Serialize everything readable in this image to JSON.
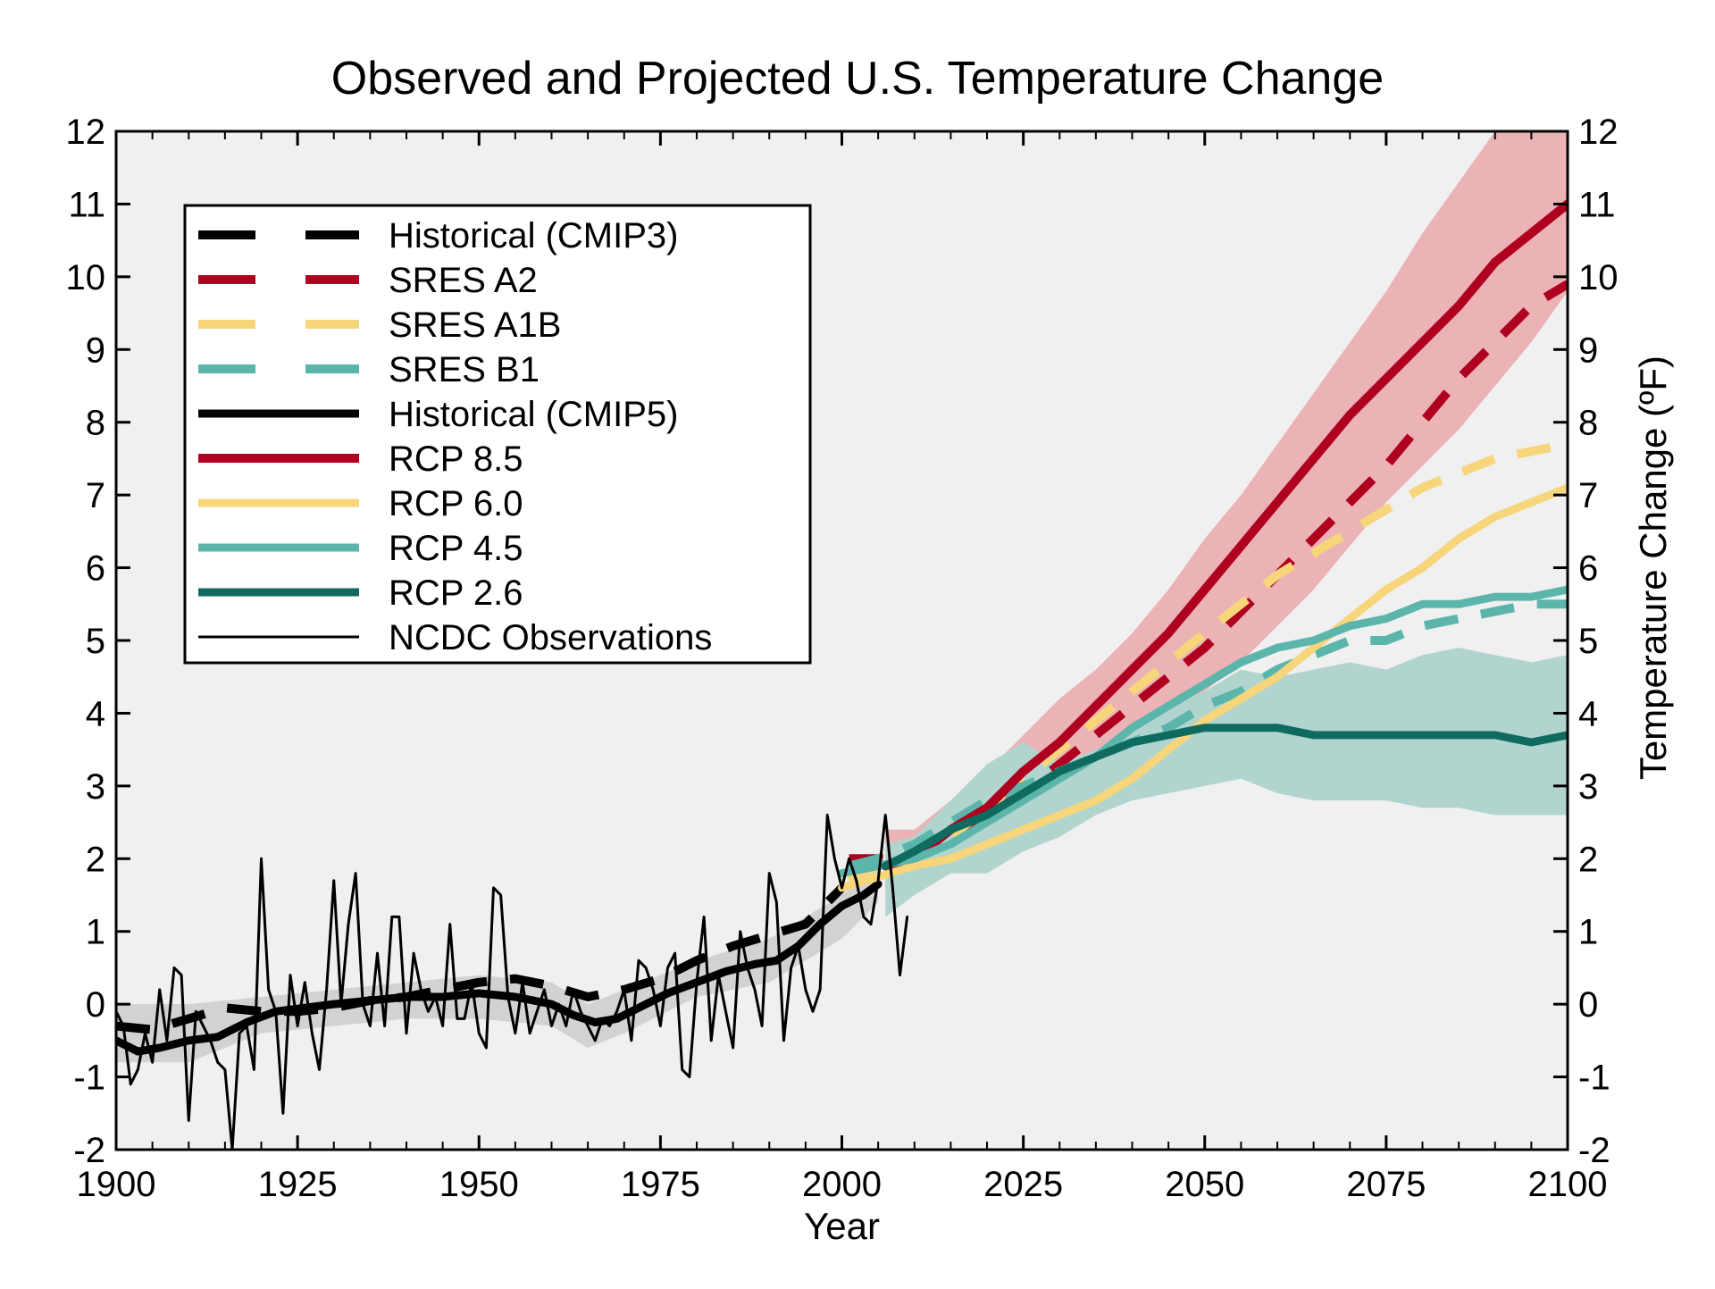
{
  "chart_data": {
    "type": "line",
    "title": "Observed and Projected U.S. Temperature Change",
    "xlabel": "Year",
    "ylabel_right": "Temperature Change (ºF)",
    "xlim": [
      1900,
      2100
    ],
    "ylim": [
      -2,
      12
    ],
    "xticks": [
      1900,
      1925,
      1950,
      1975,
      2000,
      2025,
      2050,
      2075,
      2100
    ],
    "yticks": [
      -2,
      -1,
      0,
      1,
      2,
      3,
      4,
      5,
      6,
      7,
      8,
      9,
      10,
      11,
      12
    ],
    "grid": false,
    "legend_position": "top-left",
    "colors": {
      "black": "#000000",
      "red": "#b00020",
      "yellow": "#f7d57a",
      "teal": "#5bb5ab",
      "darkteal": "#0f6b60",
      "red_band": "#ebb3b6",
      "teal_band": "#b2d4cf",
      "hist_band": "#d2d2d2",
      "plot_bg": "#f0f0f0"
    },
    "bands": [
      {
        "color": "red_band",
        "x": [
          2006,
          2010,
          2015,
          2020,
          2025,
          2030,
          2035,
          2040,
          2045,
          2050,
          2055,
          2060,
          2065,
          2070,
          2075,
          2080,
          2085,
          2090,
          2095,
          2100
        ],
        "upper": [
          2.4,
          2.4,
          2.8,
          3.2,
          3.7,
          4.2,
          4.6,
          5.1,
          5.7,
          6.4,
          7.0,
          7.7,
          8.4,
          9.1,
          9.8,
          10.6,
          11.3,
          12.0,
          12.0,
          12.0
        ],
        "lower": [
          1.5,
          1.6,
          1.8,
          2.0,
          2.3,
          2.7,
          3.0,
          3.4,
          3.8,
          4.3,
          4.7,
          5.2,
          5.7,
          6.3,
          6.9,
          7.4,
          7.9,
          8.5,
          9.1,
          9.8
        ]
      },
      {
        "color": "teal_band",
        "x": [
          2006,
          2010,
          2015,
          2020,
          2025,
          2030,
          2035,
          2040,
          2045,
          2050,
          2055,
          2060,
          2065,
          2070,
          2075,
          2080,
          2085,
          2090,
          2095,
          2100
        ],
        "upper": [
          2.2,
          2.3,
          2.8,
          3.3,
          3.6,
          3.3,
          3.5,
          3.8,
          4.1,
          4.3,
          4.6,
          4.5,
          4.6,
          4.7,
          4.6,
          4.8,
          4.9,
          4.8,
          4.7,
          4.8
        ],
        "lower": [
          1.2,
          1.5,
          1.8,
          1.8,
          2.1,
          2.3,
          2.6,
          2.8,
          2.9,
          3.0,
          3.1,
          2.9,
          2.8,
          2.8,
          2.8,
          2.7,
          2.7,
          2.6,
          2.6,
          2.6
        ]
      },
      {
        "color": "hist_band",
        "x": [
          1900,
          1910,
          1920,
          1930,
          1940,
          1950,
          1960,
          1965,
          1970,
          1980,
          1990,
          2000,
          2005
        ],
        "upper": [
          0.0,
          0.0,
          0.1,
          0.2,
          0.3,
          0.4,
          0.3,
          0.0,
          0.2,
          0.6,
          0.9,
          1.5,
          1.9
        ],
        "lower": [
          -0.8,
          -0.8,
          -0.4,
          -0.3,
          -0.2,
          -0.2,
          -0.3,
          -0.6,
          -0.4,
          0.1,
          0.3,
          0.9,
          1.4
        ]
      }
    ],
    "series": [
      {
        "name": "Historical (CMIP3)",
        "color": "black",
        "style": "dashed",
        "width": 10,
        "x": [
          1900,
          1905,
          1910,
          1915,
          1920,
          1925,
          1930,
          1935,
          1940,
          1945,
          1950,
          1955,
          1960,
          1965,
          1970,
          1975,
          1980,
          1985,
          1990,
          1995,
          2000
        ],
        "y": [
          -0.3,
          -0.35,
          -0.2,
          -0.05,
          -0.1,
          -0.1,
          -0.05,
          0.05,
          0.1,
          0.2,
          0.3,
          0.35,
          0.25,
          0.1,
          0.2,
          0.35,
          0.6,
          0.8,
          0.95,
          1.1,
          1.6
        ]
      },
      {
        "name": "SRES A2",
        "color": "red",
        "style": "dashed",
        "width": 10,
        "x": [
          2001,
          2005,
          2010,
          2015,
          2020,
          2025,
          2030,
          2035,
          2040,
          2045,
          2050,
          2055,
          2060,
          2065,
          2070,
          2075,
          2080,
          2085,
          2090,
          2095,
          2100
        ],
        "y": [
          2.0,
          2.0,
          2.0,
          2.3,
          2.6,
          2.9,
          3.3,
          3.7,
          4.1,
          4.5,
          4.9,
          5.4,
          5.9,
          6.4,
          6.9,
          7.4,
          8.0,
          8.6,
          9.1,
          9.6,
          9.9
        ]
      },
      {
        "name": "SRES A1B",
        "color": "yellow",
        "style": "dashed",
        "width": 10,
        "x": [
          2001,
          2005,
          2010,
          2015,
          2020,
          2025,
          2030,
          2035,
          2040,
          2045,
          2050,
          2055,
          2060,
          2065,
          2070,
          2075,
          2080,
          2085,
          2090,
          2095,
          2100
        ],
        "y": [
          1.7,
          1.9,
          2.0,
          2.3,
          2.7,
          3.1,
          3.5,
          3.9,
          4.3,
          4.7,
          5.1,
          5.5,
          5.9,
          6.2,
          6.5,
          6.8,
          7.1,
          7.3,
          7.5,
          7.6,
          7.7
        ]
      },
      {
        "name": "SRES B1",
        "color": "teal",
        "style": "dashed",
        "width": 10,
        "x": [
          2001,
          2005,
          2010,
          2015,
          2020,
          2025,
          2030,
          2035,
          2040,
          2045,
          2050,
          2055,
          2060,
          2065,
          2070,
          2075,
          2080,
          2085,
          2090,
          2095,
          2100
        ],
        "y": [
          1.9,
          2.0,
          2.2,
          2.5,
          2.8,
          3.0,
          3.2,
          3.4,
          3.6,
          3.8,
          4.1,
          4.3,
          4.6,
          4.8,
          5.0,
          5.0,
          5.2,
          5.3,
          5.4,
          5.5,
          5.5
        ]
      },
      {
        "name": "Historical (CMIP5)",
        "color": "black",
        "style": "solid",
        "width": 9,
        "x": [
          1900,
          1903,
          1906,
          1910,
          1914,
          1918,
          1922,
          1926,
          1930,
          1935,
          1940,
          1945,
          1950,
          1955,
          1960,
          1963,
          1966,
          1969,
          1972,
          1976,
          1980,
          1984,
          1988,
          1991,
          1994,
          1997,
          2000,
          2003,
          2005
        ],
        "y": [
          -0.5,
          -0.65,
          -0.6,
          -0.5,
          -0.45,
          -0.25,
          -0.1,
          -0.05,
          0.0,
          0.05,
          0.1,
          0.1,
          0.15,
          0.1,
          0.0,
          -0.15,
          -0.25,
          -0.2,
          -0.05,
          0.15,
          0.3,
          0.45,
          0.55,
          0.6,
          0.8,
          1.1,
          1.35,
          1.5,
          1.65
        ]
      },
      {
        "name": "RCP 8.5",
        "color": "red",
        "style": "solid",
        "width": 10,
        "x": [
          2006,
          2008,
          2010,
          2015,
          2020,
          2025,
          2030,
          2035,
          2040,
          2045,
          2050,
          2055,
          2060,
          2065,
          2070,
          2075,
          2080,
          2085,
          2090,
          2095,
          2100
        ],
        "y": [
          1.9,
          1.85,
          2.0,
          2.4,
          2.7,
          3.2,
          3.6,
          4.1,
          4.6,
          5.1,
          5.7,
          6.3,
          6.9,
          7.5,
          8.1,
          8.6,
          9.1,
          9.6,
          10.2,
          10.6,
          11.0
        ]
      },
      {
        "name": "RCP 6.0",
        "color": "yellow",
        "style": "solid",
        "width": 9,
        "x": [
          2000,
          2005,
          2010,
          2015,
          2020,
          2025,
          2030,
          2035,
          2040,
          2045,
          2050,
          2055,
          2060,
          2065,
          2070,
          2075,
          2080,
          2085,
          2090,
          2095,
          2100
        ],
        "y": [
          1.6,
          1.75,
          1.9,
          2.0,
          2.2,
          2.4,
          2.6,
          2.8,
          3.1,
          3.5,
          3.9,
          4.2,
          4.5,
          4.9,
          5.3,
          5.7,
          6.0,
          6.4,
          6.7,
          6.9,
          7.1
        ]
      },
      {
        "name": "RCP 4.5",
        "color": "teal",
        "style": "solid",
        "width": 9,
        "x": [
          2000,
          2005,
          2010,
          2015,
          2020,
          2025,
          2030,
          2035,
          2040,
          2045,
          2050,
          2055,
          2060,
          2065,
          2070,
          2075,
          2080,
          2085,
          2090,
          2095,
          2100
        ],
        "y": [
          1.8,
          1.9,
          2.0,
          2.2,
          2.5,
          2.8,
          3.1,
          3.4,
          3.8,
          4.1,
          4.4,
          4.7,
          4.9,
          5.0,
          5.2,
          5.3,
          5.5,
          5.5,
          5.6,
          5.6,
          5.7
        ]
      },
      {
        "name": "RCP 2.6",
        "color": "darkteal",
        "style": "solid",
        "width": 9,
        "x": [
          2006,
          2010,
          2015,
          2020,
          2025,
          2030,
          2035,
          2040,
          2045,
          2050,
          2055,
          2060,
          2065,
          2070,
          2075,
          2080,
          2085,
          2090,
          2095,
          2100
        ],
        "y": [
          1.9,
          2.1,
          2.4,
          2.6,
          2.9,
          3.2,
          3.4,
          3.6,
          3.7,
          3.8,
          3.8,
          3.8,
          3.7,
          3.7,
          3.7,
          3.7,
          3.7,
          3.7,
          3.6,
          3.7
        ]
      },
      {
        "name": "NCDC Observations",
        "color": "black",
        "style": "solid",
        "width": 3,
        "x": [
          1900,
          1901,
          1902,
          1903,
          1904,
          1905,
          1906,
          1907,
          1908,
          1909,
          1910,
          1911,
          1912,
          1913,
          1914,
          1915,
          1916,
          1917,
          1918,
          1919,
          1920,
          1921,
          1922,
          1923,
          1924,
          1925,
          1926,
          1927,
          1928,
          1929,
          1930,
          1931,
          1932,
          1933,
          1934,
          1935,
          1936,
          1937,
          1938,
          1939,
          1940,
          1941,
          1942,
          1943,
          1944,
          1945,
          1946,
          1947,
          1948,
          1949,
          1950,
          1951,
          1952,
          1953,
          1954,
          1955,
          1956,
          1957,
          1958,
          1959,
          1960,
          1961,
          1962,
          1963,
          1964,
          1965,
          1966,
          1967,
          1968,
          1969,
          1970,
          1971,
          1972,
          1973,
          1974,
          1975,
          1976,
          1977,
          1978,
          1979,
          1980,
          1981,
          1982,
          1983,
          1984,
          1985,
          1986,
          1987,
          1988,
          1989,
          1990,
          1991,
          1992,
          1993,
          1994,
          1995,
          1996,
          1997,
          1998,
          1999,
          2000,
          2001,
          2002,
          2003,
          2004,
          2005,
          2006,
          2007,
          2008,
          2009
        ],
        "y": [
          -0.1,
          -0.3,
          -1.1,
          -0.9,
          -0.4,
          -0.8,
          0.2,
          -0.5,
          0.5,
          0.4,
          -1.6,
          -0.1,
          -0.3,
          -0.5,
          -0.8,
          -0.9,
          -2.0,
          -0.4,
          -0.3,
          -0.9,
          2.0,
          0.2,
          -0.1,
          -1.5,
          0.4,
          -0.3,
          0.3,
          -0.4,
          -0.9,
          0.2,
          1.7,
          0.0,
          1.1,
          1.8,
          0.0,
          -0.3,
          0.7,
          -0.3,
          1.2,
          1.2,
          -0.4,
          0.7,
          0.2,
          -0.1,
          0.1,
          -0.3,
          1.1,
          -0.2,
          -0.2,
          0.3,
          -0.4,
          -0.6,
          1.6,
          1.5,
          0.1,
          -0.4,
          0.3,
          -0.4,
          -0.1,
          0.2,
          -0.3,
          0.0,
          -0.3,
          0.2,
          -0.1,
          -0.3,
          -0.5,
          -0.2,
          -0.3,
          -0.1,
          0.2,
          -0.5,
          0.6,
          0.5,
          0.2,
          -0.3,
          0.5,
          0.7,
          -0.9,
          -1.0,
          0.3,
          1.2,
          -0.5,
          0.4,
          -0.1,
          -0.6,
          1.0,
          0.5,
          0.2,
          -0.3,
          1.8,
          1.4,
          -0.5,
          0.5,
          0.8,
          0.2,
          -0.1,
          0.2,
          2.6,
          2.0,
          1.6,
          2.0,
          1.7,
          1.2,
          1.1,
          1.7,
          2.6,
          1.6,
          0.4,
          1.2
        ]
      }
    ]
  }
}
